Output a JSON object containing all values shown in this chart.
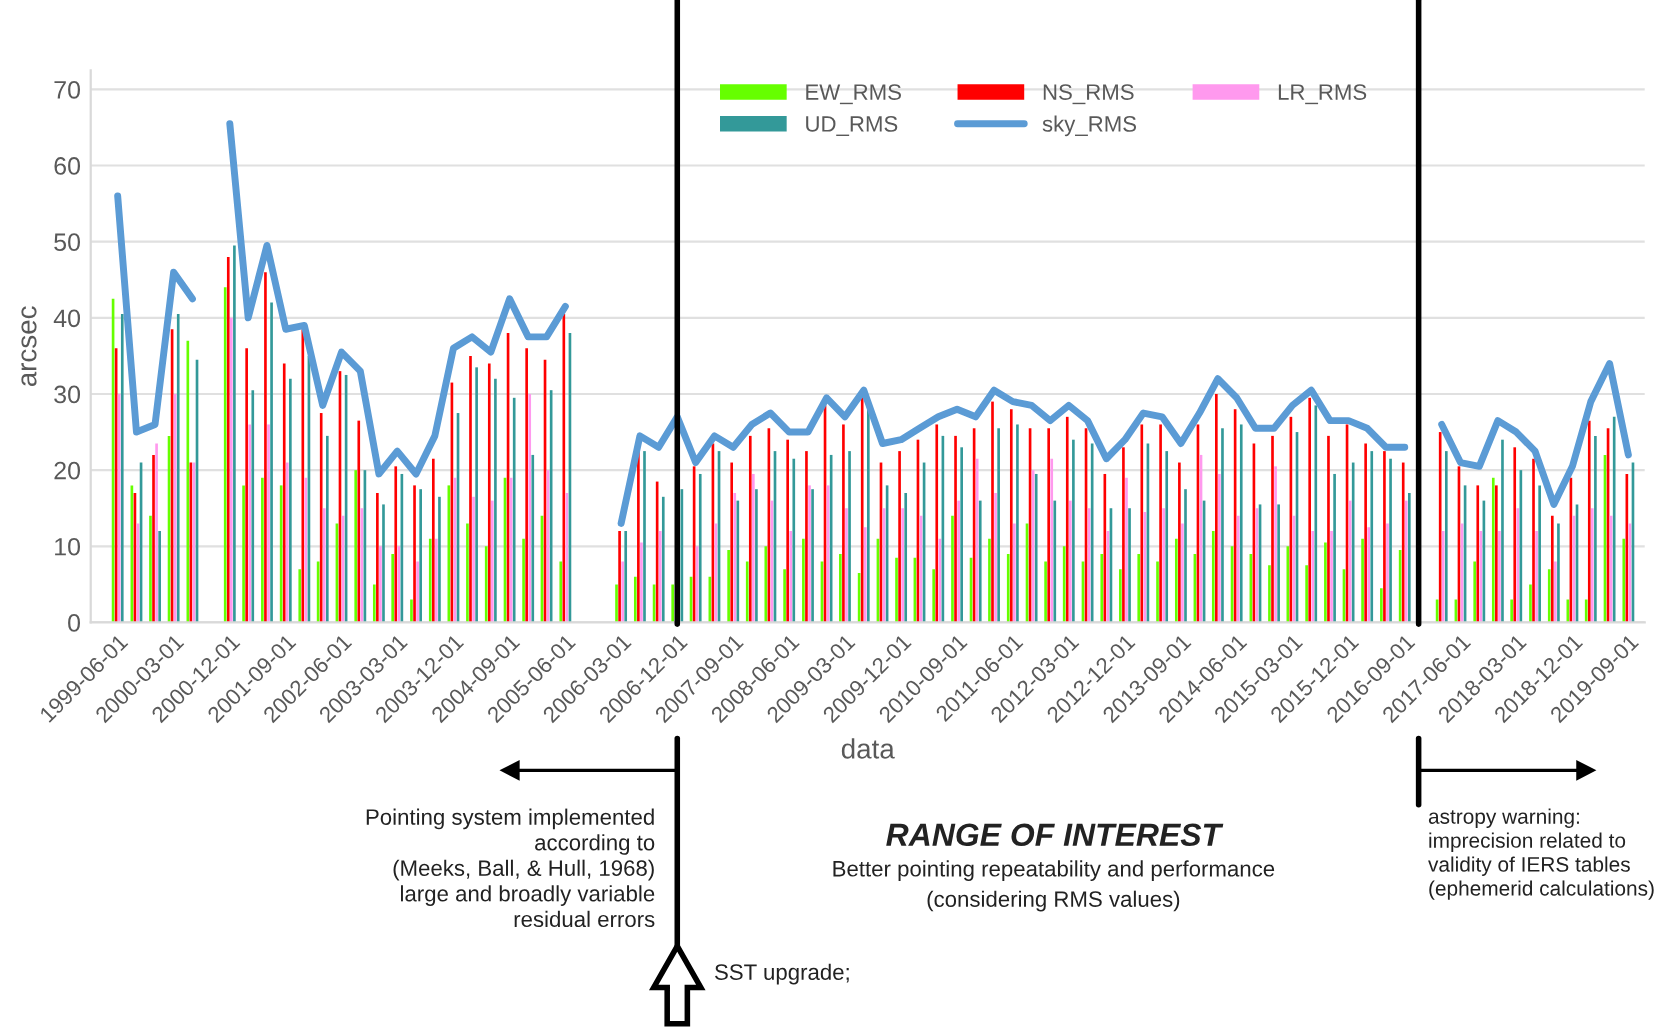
{
  "chart_data": {
    "type": "bar",
    "xlabel": "data",
    "ylabel": "arcsec",
    "x": [
      "1999-06-01",
      "1999-09-01",
      "1999-12-01",
      "2000-03-01",
      "2000-06-01",
      "2000-09-01",
      "2000-12-01",
      "2001-03-01",
      "2001-06-01",
      "2001-09-01",
      "2001-12-01",
      "2002-03-01",
      "2002-06-01",
      "2002-09-01",
      "2002-12-01",
      "2003-03-01",
      "2003-06-01",
      "2003-09-01",
      "2003-12-01",
      "2004-03-01",
      "2004-06-01",
      "2004-09-01",
      "2004-12-01",
      "2005-03-01",
      "2005-06-01",
      "2005-09-01",
      "2005-12-01",
      "2006-03-01",
      "2006-06-01",
      "2006-09-01",
      "2006-12-01",
      "2007-03-01",
      "2007-06-01",
      "2007-09-01",
      "2007-12-01",
      "2008-03-01",
      "2008-06-01",
      "2008-09-01",
      "2008-12-01",
      "2009-03-01",
      "2009-06-01",
      "2009-09-01",
      "2009-12-01",
      "2010-03-01",
      "2010-06-01",
      "2010-09-01",
      "2010-12-01",
      "2011-03-01",
      "2011-06-01",
      "2011-09-01",
      "2011-12-01",
      "2012-03-01",
      "2012-06-01",
      "2012-09-01",
      "2012-12-01",
      "2013-03-01",
      "2013-06-01",
      "2013-09-01",
      "2013-12-01",
      "2014-03-01",
      "2014-06-01",
      "2014-09-01",
      "2014-12-01",
      "2015-03-01",
      "2015-06-01",
      "2015-09-01",
      "2015-12-01",
      "2016-03-01",
      "2016-06-01",
      "2016-09-01",
      "2016-12-01",
      "2017-03-01",
      "2017-06-01",
      "2017-09-01",
      "2017-12-01",
      "2018-03-01",
      "2018-06-01",
      "2018-09-01",
      "2018-12-01",
      "2019-03-01",
      "2019-06-01",
      "2019-09-01"
    ],
    "series": [
      {
        "name": "EW_RMS",
        "color": "#66ff00",
        "values": [
          42.5,
          18,
          14,
          24.5,
          37,
          null,
          44,
          18,
          19,
          18,
          7,
          8,
          13,
          20,
          5,
          9,
          3,
          11,
          18,
          13,
          10,
          19,
          11,
          14,
          8,
          null,
          null,
          5,
          6,
          5,
          5,
          6,
          6,
          9.5,
          8,
          10,
          7,
          11,
          8,
          9,
          6.5,
          11,
          8.5,
          8.5,
          7,
          14,
          8.5,
          11,
          9,
          13,
          8,
          10,
          8,
          9,
          7,
          9,
          8,
          11,
          9,
          12,
          10,
          9,
          7.5,
          10,
          7.5,
          10.5,
          7,
          11,
          4.5,
          9.5,
          null,
          3,
          3,
          8,
          19,
          3,
          5,
          7,
          3,
          3,
          22,
          11
        ]
      },
      {
        "name": "NS_RMS",
        "color": "#ff0000",
        "values": [
          36,
          17,
          22,
          38.5,
          21,
          null,
          48,
          36,
          46,
          34,
          38.5,
          27.5,
          33,
          26.5,
          17,
          20.5,
          18,
          21.5,
          31.5,
          35,
          34,
          38,
          36,
          34.5,
          40.5,
          null,
          null,
          12,
          22.5,
          18.5,
          null,
          20.5,
          23.5,
          21,
          24.5,
          25.5,
          24,
          22.5,
          28.5,
          26,
          30,
          21,
          22.5,
          24,
          26,
          24.5,
          25.5,
          29,
          28,
          25.5,
          25.5,
          27,
          25.5,
          19.5,
          23,
          26,
          26,
          21,
          26,
          30,
          28,
          23.5,
          24.5,
          27,
          29.5,
          24.5,
          26,
          23.5,
          22.5,
          21,
          null,
          25,
          20.5,
          18,
          18,
          23,
          21.5,
          14,
          19,
          26.5,
          25.5,
          19.5
        ]
      },
      {
        "name": "LR_RMS",
        "color": "#ff99ee",
        "values": [
          30,
          13,
          23.5,
          30,
          21,
          null,
          40,
          26,
          26,
          21,
          19,
          15,
          14,
          15,
          10,
          10,
          8,
          11,
          19,
          16.5,
          16,
          19,
          30,
          20,
          17,
          null,
          null,
          8,
          10.5,
          12,
          null,
          10,
          13,
          17,
          19.5,
          16,
          12,
          18,
          18,
          15,
          12.5,
          15,
          15,
          14,
          11,
          16,
          21.5,
          17,
          13,
          20,
          21.5,
          16,
          15,
          12,
          19,
          14.5,
          15,
          13,
          22,
          19.5,
          14,
          15,
          20.5,
          14,
          12,
          12,
          16,
          12.5,
          13,
          16,
          null,
          12,
          13,
          12,
          12,
          15,
          12,
          8,
          14,
          15,
          14,
          13
        ]
      },
      {
        "name": "UD_RMS",
        "color": "#339999",
        "values": [
          40.5,
          21,
          12,
          40.5,
          34.5,
          null,
          49.5,
          30.5,
          42,
          32,
          35,
          24.5,
          32.5,
          20,
          15.5,
          19.5,
          17.5,
          16.5,
          27.5,
          33.5,
          32,
          29.5,
          22,
          30.5,
          38,
          null,
          null,
          12,
          22.5,
          16.5,
          17.5,
          19.5,
          22.5,
          16,
          17.5,
          22.5,
          21.5,
          17.5,
          22,
          22.5,
          28.5,
          18,
          17,
          21,
          24.5,
          23,
          16,
          25.5,
          26,
          19.5,
          16,
          24,
          23.5,
          15,
          15,
          23.5,
          22.5,
          17.5,
          16,
          25.5,
          26,
          15.5,
          15.5,
          25,
          28.5,
          19.5,
          21,
          22.5,
          21.5,
          17,
          null,
          22.5,
          18,
          16,
          24,
          20,
          18,
          13,
          15.5,
          24.5,
          27,
          21
        ]
      },
      {
        "name": "sky_RMS",
        "type": "line",
        "color": "#5b9bd5",
        "values": [
          56,
          25,
          26,
          46,
          42.5,
          null,
          65.5,
          40,
          49.5,
          38.5,
          39,
          28.5,
          35.5,
          33,
          19.5,
          22.5,
          19.5,
          24.5,
          36,
          37.5,
          35.5,
          42.5,
          37.5,
          37.5,
          41.5,
          null,
          null,
          13,
          24.5,
          23,
          27,
          21,
          24.5,
          23,
          26,
          27.5,
          25,
          25,
          29.5,
          27,
          30.5,
          23.5,
          24,
          25.5,
          27,
          28,
          27,
          30.5,
          29,
          28.5,
          26.5,
          28.5,
          26.5,
          21.5,
          24,
          27.5,
          27,
          23.5,
          27.5,
          32,
          29.5,
          25.5,
          25.5,
          28.5,
          30.5,
          26.5,
          26.5,
          25.5,
          23,
          23,
          null,
          26,
          21,
          20.5,
          26.5,
          25,
          22.5,
          15.5,
          20.5,
          29,
          34,
          22
        ]
      }
    ],
    "xlim": [
      "1999-01-20",
      "2019-11-20"
    ],
    "xticks": [
      "1999-06-01",
      "2000-03-01",
      "2000-12-01",
      "2001-09-01",
      "2002-06-01",
      "2003-03-01",
      "2003-12-01",
      "2004-09-01",
      "2005-06-01",
      "2006-03-01",
      "2006-12-01",
      "2007-09-01",
      "2008-06-01",
      "2009-03-01",
      "2009-12-01",
      "2010-09-01",
      "2011-06-01",
      "2012-03-01",
      "2012-12-01",
      "2013-09-01",
      "2014-06-01",
      "2015-03-01",
      "2015-12-01",
      "2016-09-01",
      "2017-06-01",
      "2018-03-01",
      "2018-12-01",
      "2019-09-01"
    ],
    "ylim": [
      0,
      72.5
    ],
    "yticks": [
      0,
      10,
      20,
      30,
      40,
      50,
      60,
      70
    ],
    "grid": "y",
    "legend": "top right",
    "ref_lines": [
      {
        "axis": "x",
        "value": "2006-12-01",
        "color": "#000000"
      },
      {
        "axis": "x",
        "value": "2016-11-08",
        "color": "#000000"
      }
    ],
    "annotations": [
      "Pointing system implemented\naccording to\n(Meeks, Ball, & Hull, 1968)\nlarge and broadly variable\nresidual errors",
      "RANGE OF INTEREST",
      "Better pointing repeatability and performance\n(considering RMS values)",
      "SST upgrade;",
      "astropy warning:\nimprecision related to\nvalidity of IERS tables\n(ephemerid calculations)"
    ]
  }
}
